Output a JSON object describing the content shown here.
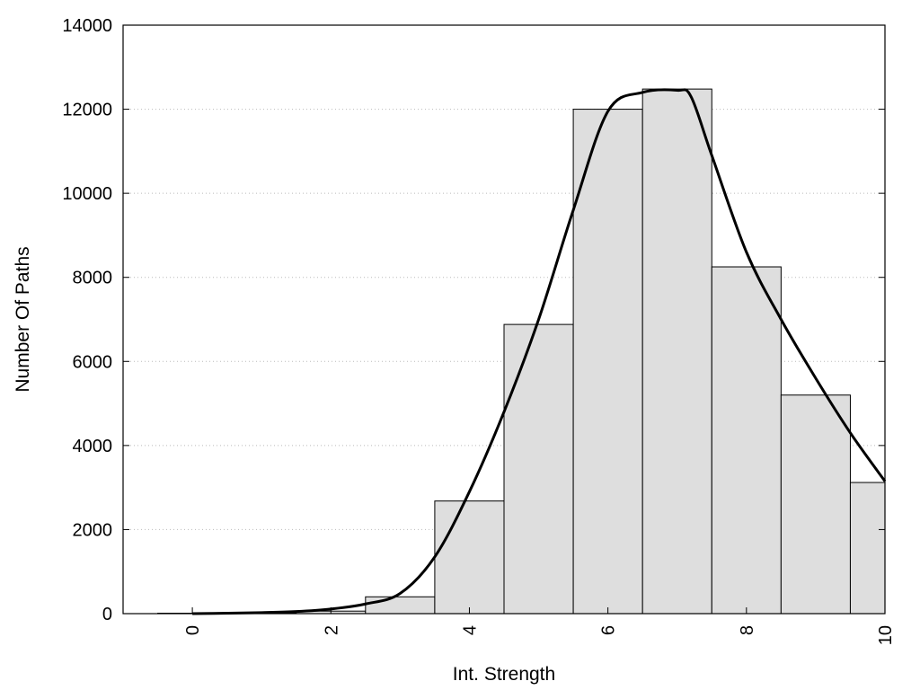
{
  "chart_data": {
    "type": "bar",
    "xlabel": "Int. Strength",
    "ylabel": "Number Of Paths",
    "xlim": [
      -1,
      10
    ],
    "ylim": [
      0,
      14000
    ],
    "x_ticks": [
      0,
      2,
      4,
      6,
      8,
      10
    ],
    "x_tick_labels": [
      "0",
      "2",
      "4",
      "6",
      "8",
      "10"
    ],
    "y_ticks": [
      0,
      2000,
      4000,
      6000,
      8000,
      10000,
      12000,
      14000
    ],
    "y_tick_labels": [
      "0",
      "2000",
      "4000",
      "6000",
      "8000",
      "10000",
      "12000",
      "14000"
    ],
    "grid": "horizontal dotted",
    "bar_width": 1,
    "bars": {
      "x": [
        0,
        1,
        2,
        3,
        4,
        5,
        6,
        7,
        8,
        9,
        10
      ],
      "values": [
        10,
        20,
        60,
        400,
        2680,
        6880,
        12000,
        12480,
        8250,
        5200,
        3120
      ]
    },
    "curve": {
      "x": [
        0,
        0.5,
        1,
        1.5,
        2,
        2.5,
        3,
        3.5,
        4,
        4.5,
        5,
        5.5,
        6,
        6.5,
        7,
        7.2,
        7.5,
        8,
        8.5,
        9,
        9.5,
        10
      ],
      "y": [
        0,
        10,
        25,
        50,
        110,
        230,
        480,
        1350,
        2900,
        4800,
        7000,
        9600,
        11950,
        12400,
        12450,
        12300,
        10900,
        8600,
        7000,
        5600,
        4300,
        3150
      ]
    },
    "colors": {
      "bar_fill": "#dedede",
      "bar_stroke": "#000000",
      "curve": "#000000",
      "grid": "#bbbbbb"
    }
  }
}
